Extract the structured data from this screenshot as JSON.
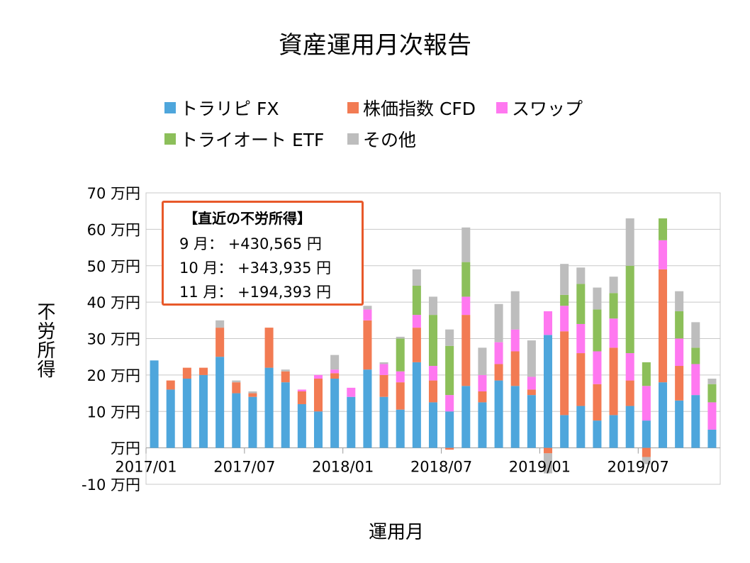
{
  "title": "資産運用月次報告",
  "legend": [
    {
      "name": "トラリピ FX",
      "color": "#4ea6dc"
    },
    {
      "name": "株価指数 CFD",
      "color": "#f27b53"
    },
    {
      "name": "スワップ",
      "color": "#ff78f0"
    },
    {
      "name": "トライオート ETF",
      "color": "#8cbf5a"
    },
    {
      "name": "その他",
      "color": "#bdbdbd"
    }
  ],
  "annotation": {
    "title": "【直近の不労所得】",
    "lines": [
      "9 月： +430,565 円",
      "10 月： +343,935 円",
      "11 月： +194,393 円"
    ]
  },
  "chart_data": {
    "type": "bar",
    "stacked": true,
    "title": "資産運用月次報告",
    "xlabel": "運用月",
    "ylabel": "不労所得",
    "ylim": [
      -10,
      70
    ],
    "ytick_values": [
      -10,
      0,
      10,
      20,
      30,
      40,
      50,
      60,
      70
    ],
    "ytick_labels": [
      "-10 万円",
      "万円",
      "10 万円",
      "20 万円",
      "30 万円",
      "40 万円",
      "50 万円",
      "60 万円",
      "70 万円"
    ],
    "xtick_labels": [
      "2017/01",
      "2017/07",
      "2018/01",
      "2018/07",
      "2019/01",
      "2019/07"
    ],
    "xtick_indices": [
      0,
      6,
      12,
      18,
      24,
      30
    ],
    "grid": "horizontal",
    "legend_position": "top",
    "categories": [
      "2017/01",
      "2017/02",
      "2017/03",
      "2017/04",
      "2017/05",
      "2017/06",
      "2017/07",
      "2017/08",
      "2017/09",
      "2017/10",
      "2017/11",
      "2017/12",
      "2018/01",
      "2018/02",
      "2018/03",
      "2018/04",
      "2018/05",
      "2018/06",
      "2018/07",
      "2018/08",
      "2018/09",
      "2018/10",
      "2018/11",
      "2018/12",
      "2019/01",
      "2019/02",
      "2019/03",
      "2019/04",
      "2019/05",
      "2019/06",
      "2019/07",
      "2019/08",
      "2019/09",
      "2019/10",
      "2019/11"
    ],
    "series": [
      {
        "name": "トラリピ FX",
        "color": "#4ea6dc",
        "values": [
          24,
          16,
          19,
          20,
          25,
          15,
          14,
          22,
          18,
          12,
          10,
          19,
          14,
          21.5,
          14,
          10.5,
          23.5,
          12.5,
          10,
          17,
          12.5,
          18.5,
          17,
          14.5,
          31,
          9,
          11.5,
          7.5,
          9,
          11.5,
          7.5,
          18,
          13,
          14.5,
          5
        ]
      },
      {
        "name": "株価指数 CFD",
        "color": "#f27b53",
        "values": [
          0,
          2.5,
          3,
          2,
          8,
          3,
          1,
          11,
          3,
          3.5,
          9,
          1.5,
          0,
          13.5,
          6,
          7.5,
          9.5,
          6,
          -0.5,
          19.5,
          3,
          4.5,
          9.5,
          1.5,
          -1.5,
          23,
          14.5,
          10,
          18.5,
          7,
          -2.5,
          31,
          9.5,
          0,
          0
        ]
      },
      {
        "name": "スワップ",
        "color": "#ff78f0",
        "values": [
          0,
          0,
          0,
          0,
          0,
          0,
          0,
          0,
          0,
          0.5,
          1,
          1,
          2.5,
          3,
          3,
          3,
          3.5,
          4,
          4.5,
          5,
          4.5,
          6,
          6,
          3.5,
          6.5,
          7,
          8,
          9,
          8,
          7.5,
          9.5,
          8,
          7.5,
          8.5,
          7.5
        ]
      },
      {
        "name": "トライオート ETF",
        "color": "#8cbf5a",
        "values": [
          0,
          0,
          0,
          0,
          0,
          0,
          0,
          0,
          0,
          0,
          0,
          0,
          0,
          0,
          0,
          9,
          8,
          14,
          13.5,
          9.5,
          0,
          0,
          0,
          0,
          0,
          3,
          11,
          11.5,
          7,
          24,
          6.5,
          6,
          7.5,
          4.5,
          5
        ]
      },
      {
        "name": "その他",
        "color": "#bdbdbd",
        "values": [
          0,
          0,
          0,
          0,
          2,
          0.5,
          0.5,
          0,
          0.5,
          0,
          0,
          4,
          0,
          1,
          0.5,
          0.5,
          4.5,
          5,
          4.5,
          9.5,
          7.5,
          10.5,
          10.5,
          10,
          -5.5,
          8.5,
          4.5,
          6,
          4.5,
          13,
          -2,
          0,
          5.5,
          7,
          1.5
        ]
      }
    ]
  }
}
